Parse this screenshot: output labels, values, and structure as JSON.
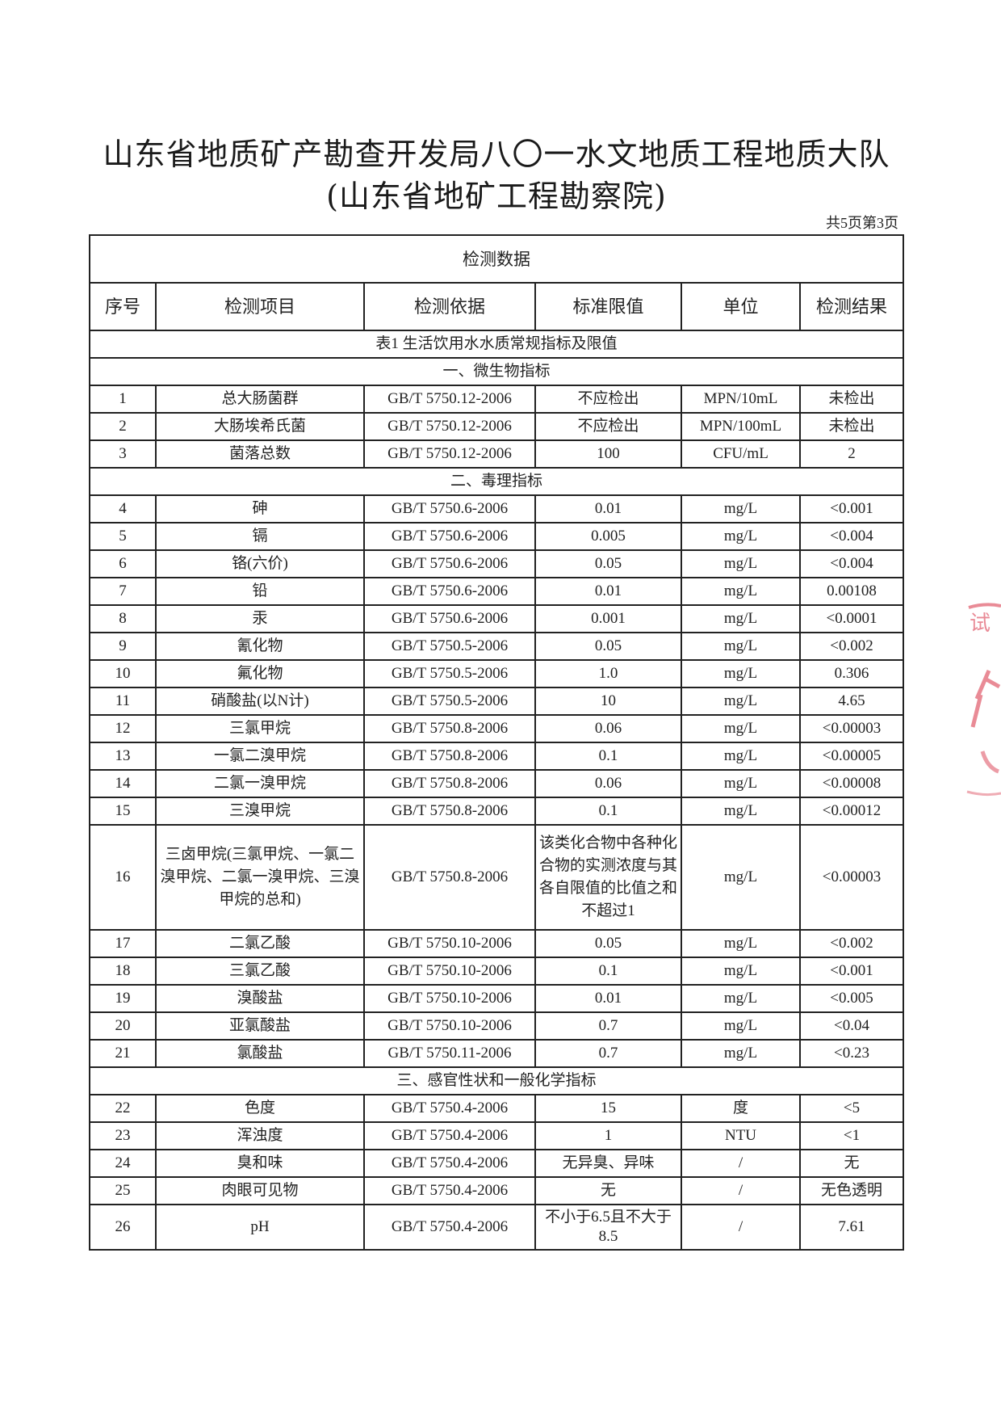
{
  "header": {
    "title": "山东省地质矿产勘查开发局八〇一水文地质工程地质大队(山东省地矿工程勘察院)",
    "page_indicator": "共5页第3页"
  },
  "table": {
    "caption": "检测数据",
    "columns": [
      "序号",
      "检测项目",
      "检测依据",
      "标准限值",
      "单位",
      "检测结果"
    ],
    "subtitle": "表1 生活饮用水水质常规指标及限值",
    "sections": [
      {
        "title": "一、微生物指标",
        "rows": [
          [
            "1",
            "总大肠菌群",
            "GB/T 5750.12-2006",
            "不应检出",
            "MPN/10mL",
            "未检出"
          ],
          [
            "2",
            "大肠埃希氏菌",
            "GB/T 5750.12-2006",
            "不应检出",
            "MPN/100mL",
            "未检出"
          ],
          [
            "3",
            "菌落总数",
            "GB/T 5750.12-2006",
            "100",
            "CFU/mL",
            "2"
          ]
        ]
      },
      {
        "title": "二、毒理指标",
        "rows": [
          [
            "4",
            "砷",
            "GB/T 5750.6-2006",
            "0.01",
            "mg/L",
            "<0.001"
          ],
          [
            "5",
            "镉",
            "GB/T 5750.6-2006",
            "0.005",
            "mg/L",
            "<0.004"
          ],
          [
            "6",
            "铬(六价)",
            "GB/T 5750.6-2006",
            "0.05",
            "mg/L",
            "<0.004"
          ],
          [
            "7",
            "铅",
            "GB/T 5750.6-2006",
            "0.01",
            "mg/L",
            "0.00108"
          ],
          [
            "8",
            "汞",
            "GB/T 5750.6-2006",
            "0.001",
            "mg/L",
            "<0.0001"
          ],
          [
            "9",
            "氰化物",
            "GB/T 5750.5-2006",
            "0.05",
            "mg/L",
            "<0.002"
          ],
          [
            "10",
            "氟化物",
            "GB/T 5750.5-2006",
            "1.0",
            "mg/L",
            "0.306"
          ],
          [
            "11",
            "硝酸盐(以N计)",
            "GB/T 5750.5-2006",
            "10",
            "mg/L",
            "4.65"
          ],
          [
            "12",
            "三氯甲烷",
            "GB/T 5750.8-2006",
            "0.06",
            "mg/L",
            "<0.00003"
          ],
          [
            "13",
            "一氯二溴甲烷",
            "GB/T 5750.8-2006",
            "0.1",
            "mg/L",
            "<0.00005"
          ],
          [
            "14",
            "二氯一溴甲烷",
            "GB/T 5750.8-2006",
            "0.06",
            "mg/L",
            "<0.00008"
          ],
          [
            "15",
            "三溴甲烷",
            "GB/T 5750.8-2006",
            "0.1",
            "mg/L",
            "<0.00012"
          ],
          [
            "16",
            "三卤甲烷(三氯甲烷、一氯二溴甲烷、二氯一溴甲烷、三溴甲烷的总和)",
            "GB/T 5750.8-2006",
            "该类化合物中各种化合物的实测浓度与其各自限值的比值之和不超过1",
            "mg/L",
            "<0.00003"
          ],
          [
            "17",
            "二氯乙酸",
            "GB/T 5750.10-2006",
            "0.05",
            "mg/L",
            "<0.002"
          ],
          [
            "18",
            "三氯乙酸",
            "GB/T 5750.10-2006",
            "0.1",
            "mg/L",
            "<0.001"
          ],
          [
            "19",
            "溴酸盐",
            "GB/T 5750.10-2006",
            "0.01",
            "mg/L",
            "<0.005"
          ],
          [
            "20",
            "亚氯酸盐",
            "GB/T 5750.10-2006",
            "0.7",
            "mg/L",
            "<0.04"
          ],
          [
            "21",
            "氯酸盐",
            "GB/T 5750.11-2006",
            "0.7",
            "mg/L",
            "<0.23"
          ]
        ]
      },
      {
        "title": "三、感官性状和一般化学指标",
        "rows": [
          [
            "22",
            "色度",
            "GB/T 5750.4-2006",
            "15",
            "度",
            "<5"
          ],
          [
            "23",
            "浑浊度",
            "GB/T 5750.4-2006",
            "1",
            "NTU",
            "<1"
          ],
          [
            "24",
            "臭和味",
            "GB/T 5750.4-2006",
            "无异臭、异味",
            "/",
            "无"
          ],
          [
            "25",
            "肉眼可见物",
            "GB/T 5750.4-2006",
            "无",
            "/",
            "无色透明"
          ],
          [
            "26",
            "pH",
            "GB/T 5750.4-2006",
            "不小于6.5且不大于8.5",
            "/",
            "7.61"
          ]
        ]
      }
    ]
  },
  "stamp_color": "#e05a6a"
}
